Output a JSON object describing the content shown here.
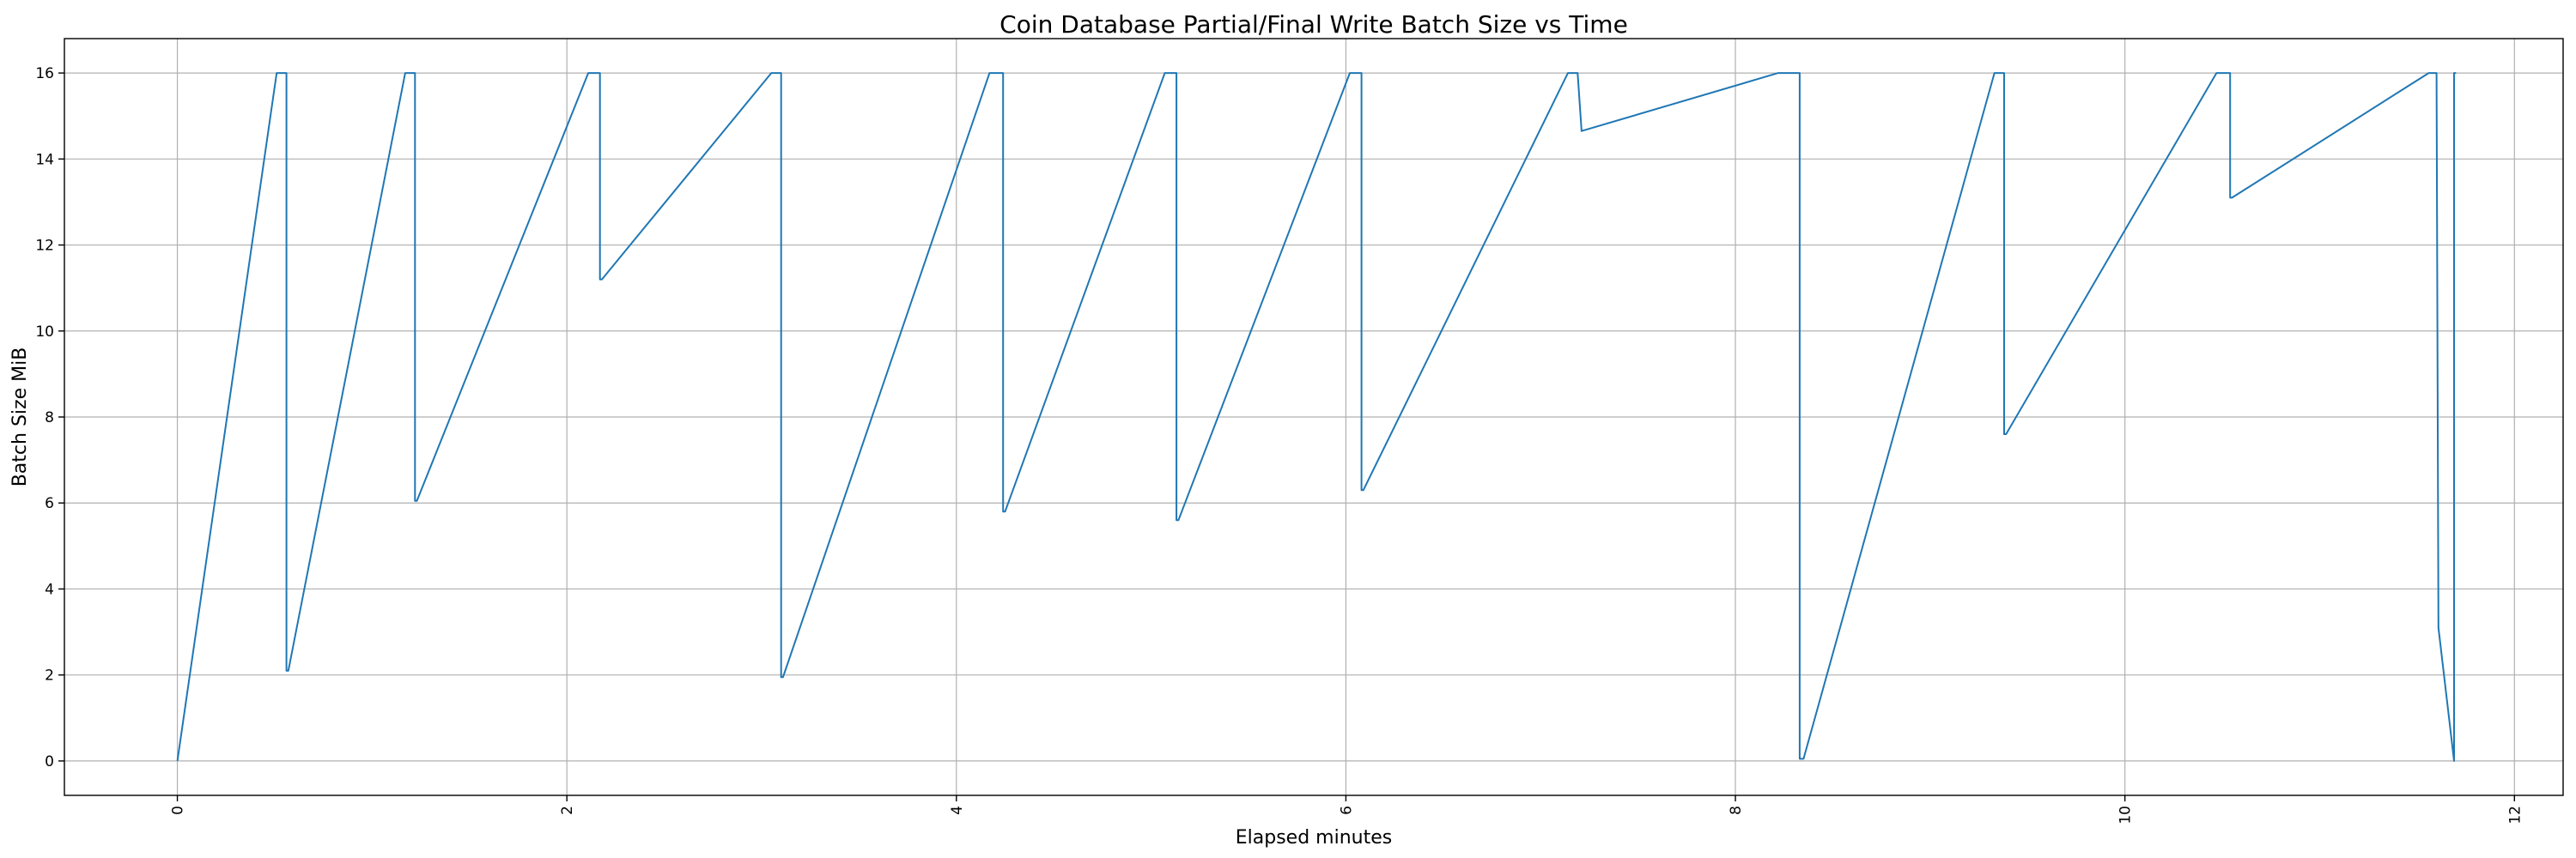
{
  "chart_data": {
    "type": "line",
    "title": "Coin Database Partial/Final Write Batch Size vs Time",
    "xlabel": "Elapsed minutes",
    "ylabel": "Batch Size MiB",
    "xlim": [
      -0.58,
      12.25
    ],
    "ylim": [
      -0.8,
      16.8
    ],
    "xticks": [
      0,
      2,
      4,
      6,
      8,
      10,
      12
    ],
    "xtick_labels": [
      "0",
      "2",
      "4",
      "6",
      "8",
      "10",
      "12"
    ],
    "xtick_rotation": 90,
    "yticks": [
      0,
      2,
      4,
      6,
      8,
      10,
      12,
      14,
      16
    ],
    "ytick_labels": [
      "0",
      "2",
      "4",
      "6",
      "8",
      "10",
      "12",
      "14",
      "16"
    ],
    "grid": true,
    "color": "#1f77b4",
    "series": [
      {
        "x": [
          0,
          0.51,
          0.56,
          0.56,
          0.57,
          1.17,
          1.22,
          1.22,
          1.23,
          2.11,
          2.17,
          2.17,
          2.18,
          3.05,
          3.1,
          3.1,
          3.11,
          4.17,
          4.24,
          4.24,
          4.25,
          5.07,
          5.13,
          5.13,
          5.14,
          6.02,
          6.08,
          6.08,
          6.09,
          7.14,
          7.19,
          7.21,
          8.22,
          8.33,
          8.33,
          8.35,
          9.33,
          9.38,
          9.38,
          9.39,
          10.47,
          10.54,
          10.54,
          10.55,
          11.56,
          11.6,
          11.61,
          11.69,
          11.69,
          11.7
        ],
        "y": [
          0,
          16,
          16,
          2.1,
          2.1,
          16,
          16,
          6.05,
          6.05,
          16,
          16,
          11.2,
          11.2,
          16,
          16,
          1.95,
          1.95,
          16,
          16,
          5.8,
          5.8,
          16,
          16,
          5.6,
          5.6,
          16,
          16,
          6.3,
          6.3,
          16,
          16,
          14.65,
          16,
          16,
          0.05,
          0.05,
          16,
          16,
          7.6,
          7.6,
          16,
          16,
          13.1,
          13.1,
          16,
          16,
          3.1,
          0,
          16,
          16
        ]
      }
    ]
  }
}
